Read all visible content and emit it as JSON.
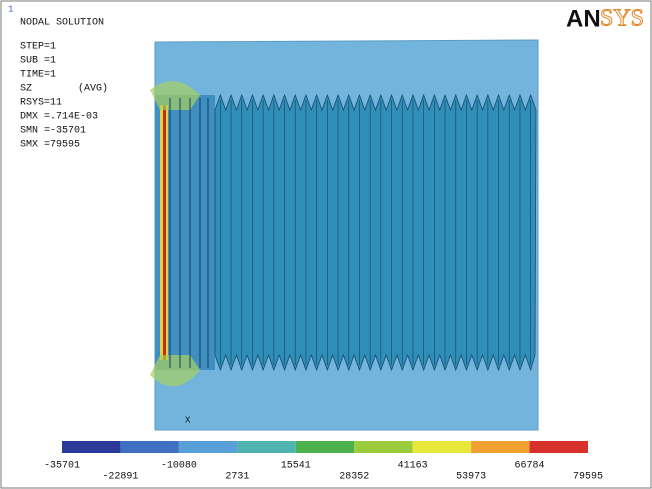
{
  "header": {
    "window_number": "1",
    "title": "NODAL SOLUTION",
    "info": [
      "STEP=1",
      "SUB =1",
      "TIME=1"
    ],
    "result": "SZ",
    "result_mode": "(AVG)",
    "info2": [
      "RSYS=11",
      "DMX =.714E-03",
      "SMN =-35701",
      "SMX =79595"
    ]
  },
  "logo": {
    "left": "AN",
    "right": "SYS"
  },
  "axis_label": "X",
  "legend": {
    "labels": [
      -35701,
      -22891,
      -10080,
      2731,
      15541,
      28352,
      41163,
      53973,
      66784,
      79595
    ],
    "colors": [
      "#2b3a9a",
      "#3f6fc0",
      "#5aa0d8",
      "#4fb3b0",
      "#4cb04c",
      "#9ccc3c",
      "#e8e83a",
      "#f0a030",
      "#d8302a"
    ]
  }
}
